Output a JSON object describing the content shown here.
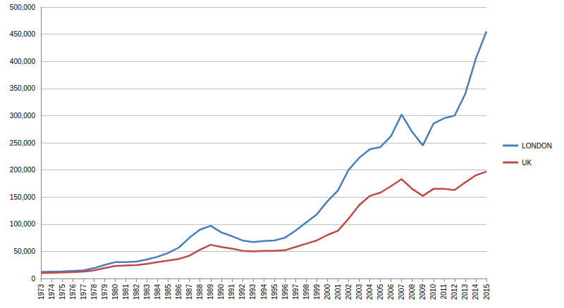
{
  "chart_data": {
    "type": "line",
    "categories": [
      "1973",
      "1974",
      "1975",
      "1976",
      "1977",
      "1978",
      "1979",
      "1980",
      "1981",
      "1982",
      "1983",
      "1984",
      "1985",
      "1986",
      "1987",
      "1988",
      "1989",
      "1990",
      "1991",
      "1992",
      "1993",
      "1994",
      "1995",
      "1996",
      "1997",
      "1998",
      "1999",
      "2000",
      "2001",
      "2002",
      "2003",
      "2004",
      "2005",
      "2006",
      "2007",
      "2008",
      "2009",
      "2010",
      "2011",
      "2012",
      "2013",
      "2014",
      "2015"
    ],
    "series": [
      {
        "name": "LONDON",
        "color": "#4a7ebb",
        "values": [
          12000,
          12500,
          13000,
          14000,
          15000,
          19000,
          25000,
          30000,
          30000,
          31000,
          35000,
          40000,
          47000,
          57000,
          75000,
          90000,
          97000,
          85000,
          78000,
          70000,
          67000,
          69000,
          70000,
          75000,
          88000,
          103000,
          118000,
          142000,
          162000,
          200000,
          222000,
          238000,
          242000,
          262000,
          302000,
          270000,
          245000,
          285000,
          295000,
          300000,
          340000,
          405000,
          455000
        ]
      },
      {
        "name": "UK",
        "color": "#be4b48",
        "values": [
          10000,
          10500,
          11000,
          11500,
          12500,
          15000,
          19000,
          23000,
          24000,
          24500,
          27000,
          30000,
          33000,
          36000,
          42000,
          53000,
          62000,
          58000,
          55000,
          51000,
          50000,
          51000,
          51000,
          52000,
          58000,
          64000,
          70000,
          80000,
          88000,
          110000,
          135000,
          152000,
          158000,
          170000,
          183000,
          165000,
          152000,
          165000,
          165000,
          163000,
          177000,
          190000,
          197000
        ]
      }
    ],
    "ylim": [
      0,
      500000
    ],
    "yticks": [
      0,
      50000,
      100000,
      150000,
      200000,
      250000,
      300000,
      350000,
      400000,
      450000,
      500000
    ],
    "grid": true,
    "legend": "right"
  }
}
